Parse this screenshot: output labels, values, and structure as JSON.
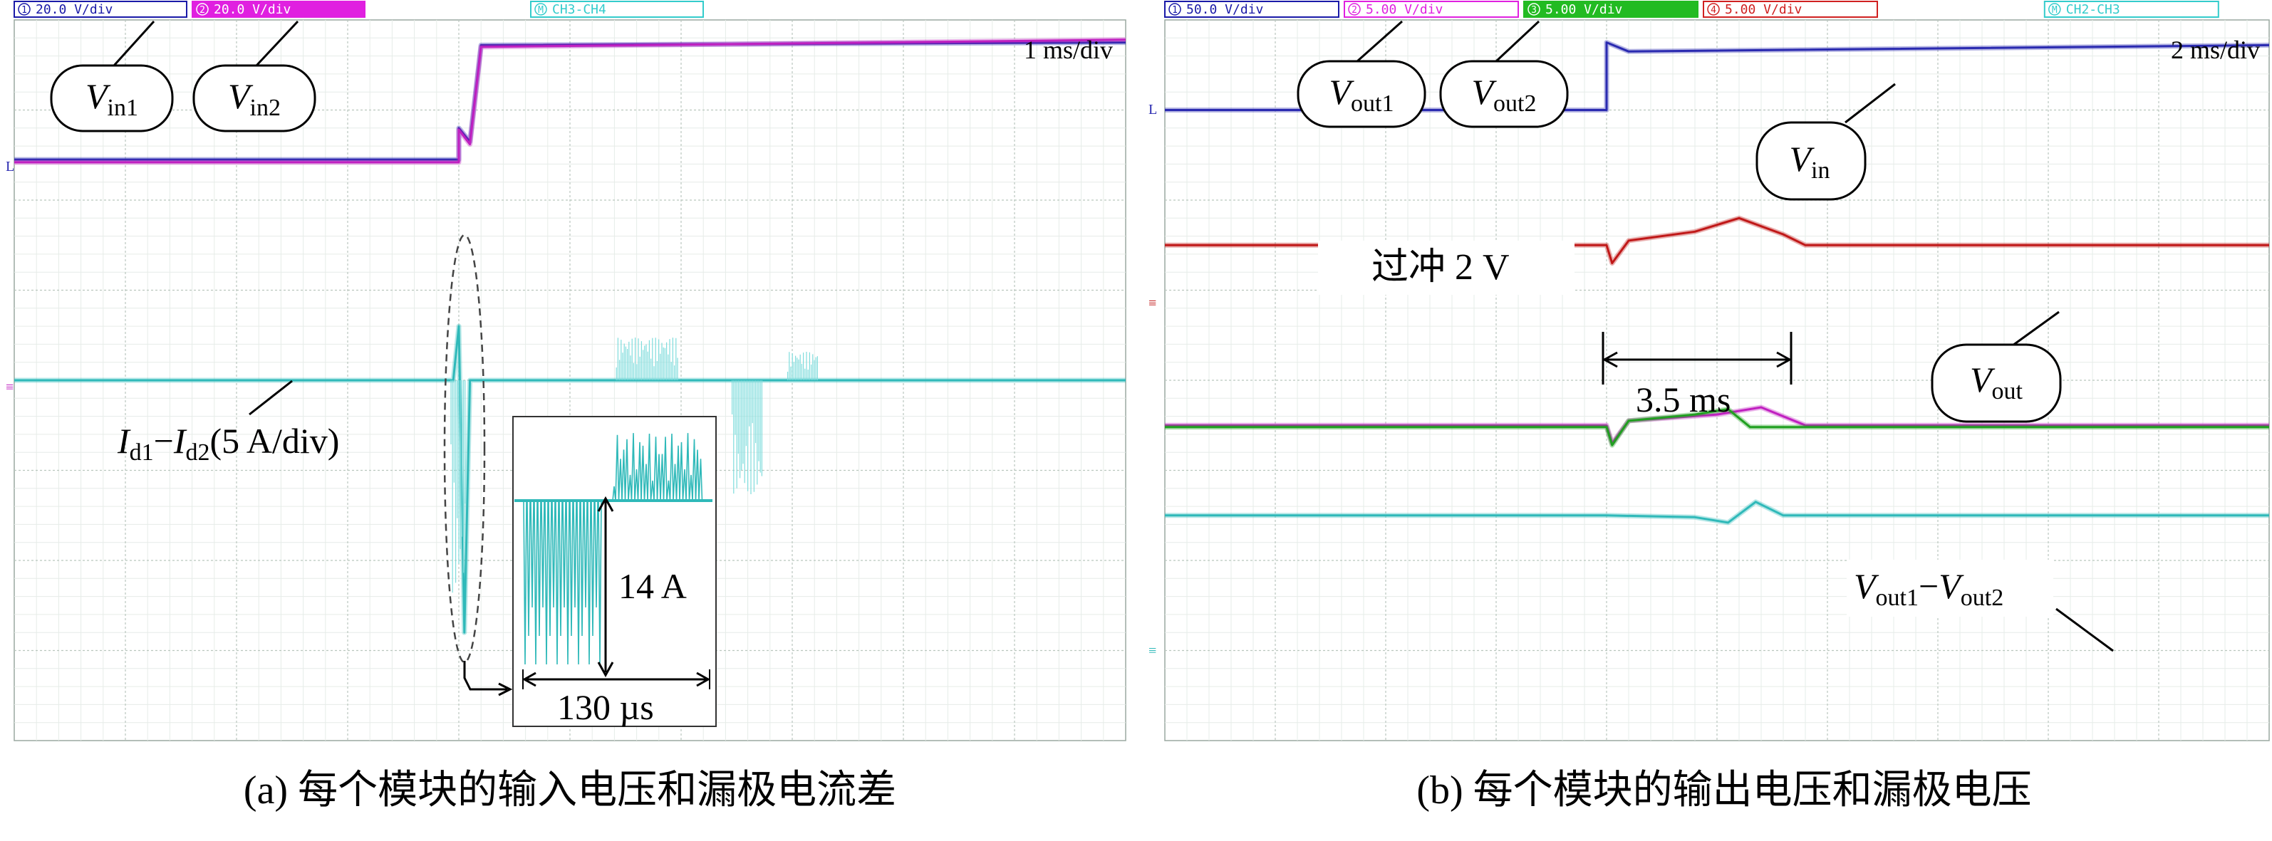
{
  "chart_data": [
    {
      "type": "line",
      "panel": "a",
      "caption": "(a) 每个模块的输入电压和漏极电流差",
      "timebase": "1 ms/div",
      "grid": true,
      "x_divisions": 10,
      "y_divisions": 8,
      "channel_header": [
        {
          "num": "1",
          "scale": "20.0 V",
          "unit": "/div",
          "color": "#1a1aa8",
          "filled": false
        },
        {
          "num": "2",
          "scale": "20.0 V",
          "unit": "/div",
          "color": "#e020e0",
          "filled": true
        },
        {
          "num": "M",
          "scale": "CH3-CH4",
          "unit": "",
          "color": "#33cccc",
          "filled": false
        }
      ],
      "series": [
        {
          "name": "Vin1",
          "color": "#2a2ab0",
          "x": [
            0,
            4.0,
            4.0,
            4.1,
            4.2,
            10
          ],
          "y": [
            2.45,
            2.45,
            2.8,
            2.65,
            3.72,
            3.75
          ]
        },
        {
          "name": "Vin2",
          "color": "#c020c0",
          "x": [
            0,
            4.0,
            4.0,
            4.1,
            4.2,
            10
          ],
          "y": [
            2.42,
            2.42,
            2.78,
            2.62,
            3.7,
            3.78
          ]
        },
        {
          "name": "Id1−Id2",
          "color": "#2fb9b9",
          "x": [
            0,
            3.95,
            4.0,
            4.05,
            4.1,
            10
          ],
          "y": [
            0,
            0,
            0.6,
            -2.8,
            0,
            0
          ]
        }
      ],
      "labels": [
        {
          "main": "V",
          "sub": "in1"
        },
        {
          "main": "V",
          "sub": "in2"
        }
      ],
      "current_label": {
        "a": "I",
        "a_sub": "d1",
        "dash": "−",
        "b": "I",
        "b_sub": "d2",
        "rest": "(5 A/div)"
      },
      "inset": {
        "amplitude": "14 A",
        "duration": "130 µs"
      }
    },
    {
      "type": "line",
      "panel": "b",
      "caption": "(b) 每个模块的输出电压和漏极电压",
      "timebase": "2 ms/div",
      "grid": true,
      "x_divisions": 10,
      "y_divisions": 8,
      "channel_header": [
        {
          "num": "1",
          "scale": "50.0 V",
          "unit": "/div",
          "color": "#1a1aa8",
          "filled": false
        },
        {
          "num": "2",
          "scale": "5.00 V",
          "unit": "/div",
          "color": "#e020e0",
          "filled": false
        },
        {
          "num": "3",
          "scale": "5.00 V",
          "unit": "/div",
          "color": "#22bb22",
          "filled": true
        },
        {
          "num": "4",
          "scale": "5.00 V",
          "unit": "/div",
          "color": "#d02020",
          "filled": false
        },
        {
          "num": "M",
          "scale": "CH2-CH3",
          "unit": "",
          "color": "#33cccc",
          "filled": false
        }
      ],
      "series": [
        {
          "name": "Vin",
          "color": "#2a2ab0",
          "x": [
            0,
            4.0,
            4.0,
            4.2,
            10
          ],
          "y": [
            3.0,
            3.0,
            3.75,
            3.65,
            3.72
          ]
        },
        {
          "name": "Vout",
          "color": "#c01818",
          "x": [
            0,
            4.0,
            4.05,
            4.2,
            4.8,
            5.2,
            5.6,
            5.8,
            10
          ],
          "y": [
            1.5,
            1.5,
            1.3,
            1.55,
            1.65,
            1.8,
            1.62,
            1.5,
            1.5
          ]
        },
        {
          "name": "Vout1",
          "color": "#c020c0",
          "x": [
            0,
            4.0,
            4.05,
            4.2,
            5.0,
            5.4,
            5.8,
            10
          ],
          "y": [
            -0.5,
            -0.5,
            -0.7,
            -0.45,
            -0.38,
            -0.3,
            -0.5,
            -0.5
          ]
        },
        {
          "name": "Vout2",
          "color": "#20a020",
          "x": [
            0,
            4.0,
            4.05,
            4.2,
            4.8,
            5.1,
            5.3,
            10
          ],
          "y": [
            -0.52,
            -0.52,
            -0.72,
            -0.45,
            -0.38,
            -0.32,
            -0.52,
            -0.52
          ]
        },
        {
          "name": "Vout1−Vout2",
          "color": "#2fb9b9",
          "x": [
            0,
            4.0,
            4.8,
            5.1,
            5.35,
            5.6,
            10
          ],
          "y": [
            -1.5,
            -1.5,
            -1.52,
            -1.58,
            -1.35,
            -1.5,
            -1.5
          ]
        }
      ],
      "labels": [
        {
          "main": "V",
          "sub": "out1"
        },
        {
          "main": "V",
          "sub": "out2"
        },
        {
          "main": "V",
          "sub": "in"
        },
        {
          "main": "V",
          "sub": "out"
        }
      ],
      "overshoot_label": "过冲 2 V",
      "duration_label": "3.5 ms",
      "diff_label": {
        "a": "V",
        "a_sub": "out1",
        "dash": "−",
        "b": "V",
        "b_sub": "out2"
      }
    }
  ]
}
